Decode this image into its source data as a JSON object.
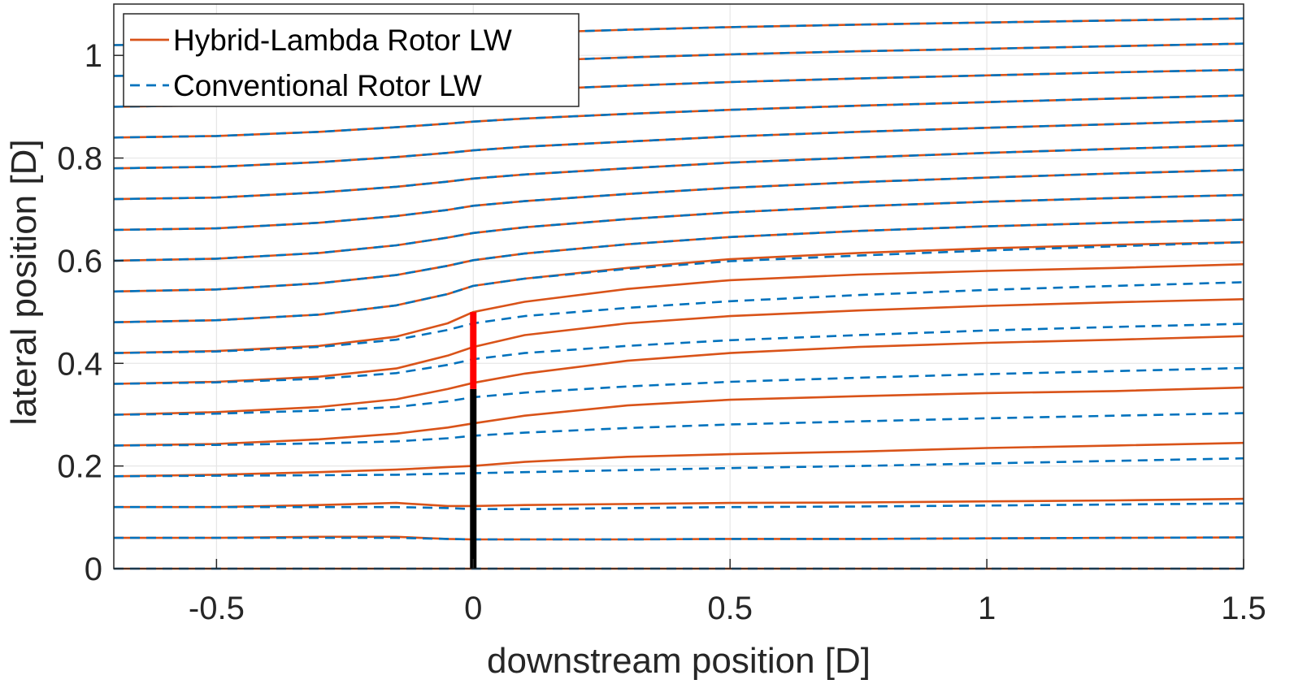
{
  "chart_data": {
    "type": "line",
    "xlabel": "downstream position [D]",
    "ylabel": "lateral position [D]",
    "xlim": [
      -0.7,
      1.5
    ],
    "ylim": [
      0,
      1.1
    ],
    "xticks": [
      -0.5,
      0,
      0.5,
      1,
      1.5
    ],
    "xtick_labels": [
      "-0.5",
      "0",
      "0.5",
      "1",
      "1.5"
    ],
    "yticks": [
      0,
      0.2,
      0.4,
      0.6,
      0.8,
      1
    ],
    "ytick_labels": [
      "0",
      "0.2",
      "0.4",
      "0.6",
      "0.8",
      "1"
    ],
    "grid": true,
    "legend_position": "top-left",
    "legend": [
      {
        "label": "Hybrid-Lambda Rotor LW",
        "style": "solid",
        "color": "#D95319"
      },
      {
        "label": "Conventional Rotor LW",
        "style": "dashed",
        "color": "#0072BD"
      }
    ],
    "rotor_segments": [
      {
        "x": 0,
        "y_from": 0,
        "y_to": 0.35,
        "color": "#000000"
      },
      {
        "x": 0,
        "y_from": 0.35,
        "y_to": 0.5,
        "color": "#FF0000"
      }
    ],
    "x": [
      -0.7,
      -0.5,
      -0.3,
      -0.15,
      -0.05,
      0,
      0.1,
      0.3,
      0.5,
      0.75,
      1.0,
      1.25,
      1.5
    ],
    "series": [
      {
        "name": "Hybrid-Lambda Rotor LW",
        "color": "#D95319",
        "dash": "solid",
        "lines": [
          [
            0,
            0,
            0,
            0,
            0,
            0,
            0,
            0,
            0,
            0,
            0,
            0,
            0
          ],
          [
            0.06,
            0.06,
            0.062,
            0.062,
            0.058,
            0.057,
            0.057,
            0.057,
            0.058,
            0.058,
            0.059,
            0.06,
            0.061
          ],
          [
            0.12,
            0.12,
            0.124,
            0.128,
            0.122,
            0.122,
            0.124,
            0.126,
            0.128,
            0.129,
            0.131,
            0.133,
            0.136
          ],
          [
            0.18,
            0.183,
            0.188,
            0.193,
            0.198,
            0.2,
            0.208,
            0.218,
            0.223,
            0.228,
            0.235,
            0.24,
            0.245
          ],
          [
            0.24,
            0.243,
            0.252,
            0.263,
            0.275,
            0.283,
            0.298,
            0.318,
            0.329,
            0.336,
            0.342,
            0.346,
            0.353
          ],
          [
            0.3,
            0.305,
            0.315,
            0.33,
            0.35,
            0.362,
            0.38,
            0.405,
            0.42,
            0.432,
            0.44,
            0.446,
            0.453
          ],
          [
            0.36,
            0.364,
            0.374,
            0.39,
            0.415,
            0.432,
            0.455,
            0.478,
            0.492,
            0.503,
            0.512,
            0.519,
            0.525
          ],
          [
            0.42,
            0.424,
            0.434,
            0.452,
            0.478,
            0.5,
            0.52,
            0.545,
            0.562,
            0.573,
            0.58,
            0.586,
            0.593
          ],
          [
            0.48,
            0.484,
            0.495,
            0.513,
            0.535,
            0.551,
            0.565,
            0.586,
            0.603,
            0.615,
            0.624,
            0.631,
            0.636
          ],
          [
            0.54,
            0.544,
            0.556,
            0.572,
            0.59,
            0.601,
            0.614,
            0.632,
            0.646,
            0.658,
            0.667,
            0.674,
            0.68
          ],
          [
            0.6,
            0.604,
            0.615,
            0.63,
            0.645,
            0.654,
            0.665,
            0.681,
            0.694,
            0.706,
            0.715,
            0.722,
            0.728
          ],
          [
            0.66,
            0.663,
            0.674,
            0.687,
            0.699,
            0.707,
            0.716,
            0.73,
            0.742,
            0.753,
            0.762,
            0.77,
            0.777
          ],
          [
            0.72,
            0.723,
            0.733,
            0.744,
            0.754,
            0.76,
            0.768,
            0.78,
            0.791,
            0.801,
            0.81,
            0.818,
            0.825
          ],
          [
            0.78,
            0.783,
            0.792,
            0.802,
            0.81,
            0.815,
            0.822,
            0.832,
            0.842,
            0.851,
            0.859,
            0.866,
            0.873
          ],
          [
            0.84,
            0.843,
            0.851,
            0.86,
            0.867,
            0.871,
            0.877,
            0.886,
            0.894,
            0.902,
            0.909,
            0.916,
            0.922
          ],
          [
            0.9,
            0.903,
            0.911,
            0.918,
            0.924,
            0.928,
            0.933,
            0.941,
            0.948,
            0.955,
            0.961,
            0.967,
            0.972
          ],
          [
            0.96,
            0.963,
            0.97,
            0.977,
            0.982,
            0.985,
            0.989,
            0.996,
            1.002,
            1.008,
            1.013,
            1.018,
            1.023
          ],
          [
            1.02,
            1.022,
            1.028,
            1.034,
            1.038,
            1.04,
            1.044,
            1.05,
            1.055,
            1.06,
            1.064,
            1.068,
            1.072
          ]
        ]
      },
      {
        "name": "Conventional Rotor LW",
        "color": "#0072BD",
        "dash": "dashed",
        "lines": [
          [
            0,
            0,
            0,
            0,
            0,
            0,
            0,
            0,
            0,
            0,
            0,
            0,
            0
          ],
          [
            0.06,
            0.06,
            0.06,
            0.06,
            0.058,
            0.057,
            0.057,
            0.057,
            0.058,
            0.058,
            0.059,
            0.06,
            0.061
          ],
          [
            0.12,
            0.12,
            0.12,
            0.12,
            0.118,
            0.116,
            0.116,
            0.118,
            0.12,
            0.121,
            0.123,
            0.125,
            0.127
          ],
          [
            0.18,
            0.181,
            0.182,
            0.183,
            0.185,
            0.186,
            0.188,
            0.192,
            0.196,
            0.2,
            0.205,
            0.21,
            0.215
          ],
          [
            0.24,
            0.241,
            0.244,
            0.248,
            0.254,
            0.259,
            0.265,
            0.274,
            0.281,
            0.287,
            0.293,
            0.298,
            0.303
          ],
          [
            0.3,
            0.302,
            0.308,
            0.315,
            0.326,
            0.334,
            0.343,
            0.355,
            0.364,
            0.372,
            0.379,
            0.385,
            0.391
          ],
          [
            0.36,
            0.363,
            0.37,
            0.381,
            0.397,
            0.408,
            0.42,
            0.434,
            0.445,
            0.455,
            0.464,
            0.471,
            0.477
          ],
          [
            0.42,
            0.423,
            0.432,
            0.446,
            0.465,
            0.478,
            0.492,
            0.508,
            0.521,
            0.533,
            0.543,
            0.551,
            0.558
          ],
          [
            0.48,
            0.484,
            0.495,
            0.513,
            0.535,
            0.551,
            0.565,
            0.584,
            0.599,
            0.61,
            0.62,
            0.628,
            0.636
          ],
          [
            0.54,
            0.544,
            0.556,
            0.572,
            0.59,
            0.601,
            0.614,
            0.632,
            0.646,
            0.658,
            0.667,
            0.674,
            0.68
          ],
          [
            0.6,
            0.604,
            0.615,
            0.63,
            0.645,
            0.654,
            0.665,
            0.681,
            0.694,
            0.706,
            0.715,
            0.722,
            0.728
          ],
          [
            0.66,
            0.663,
            0.674,
            0.687,
            0.699,
            0.707,
            0.716,
            0.73,
            0.742,
            0.753,
            0.762,
            0.77,
            0.777
          ],
          [
            0.72,
            0.723,
            0.733,
            0.744,
            0.754,
            0.76,
            0.768,
            0.78,
            0.791,
            0.801,
            0.81,
            0.818,
            0.825
          ],
          [
            0.78,
            0.783,
            0.792,
            0.802,
            0.81,
            0.815,
            0.822,
            0.832,
            0.842,
            0.851,
            0.859,
            0.866,
            0.873
          ],
          [
            0.84,
            0.843,
            0.851,
            0.86,
            0.867,
            0.871,
            0.877,
            0.886,
            0.894,
            0.902,
            0.909,
            0.916,
            0.922
          ],
          [
            0.9,
            0.903,
            0.911,
            0.918,
            0.924,
            0.928,
            0.933,
            0.941,
            0.948,
            0.955,
            0.961,
            0.967,
            0.972
          ],
          [
            0.96,
            0.963,
            0.97,
            0.977,
            0.982,
            0.985,
            0.989,
            0.996,
            1.002,
            1.008,
            1.013,
            1.018,
            1.023
          ],
          [
            1.02,
            1.022,
            1.028,
            1.034,
            1.038,
            1.04,
            1.044,
            1.05,
            1.055,
            1.06,
            1.064,
            1.068,
            1.072
          ]
        ]
      }
    ]
  }
}
